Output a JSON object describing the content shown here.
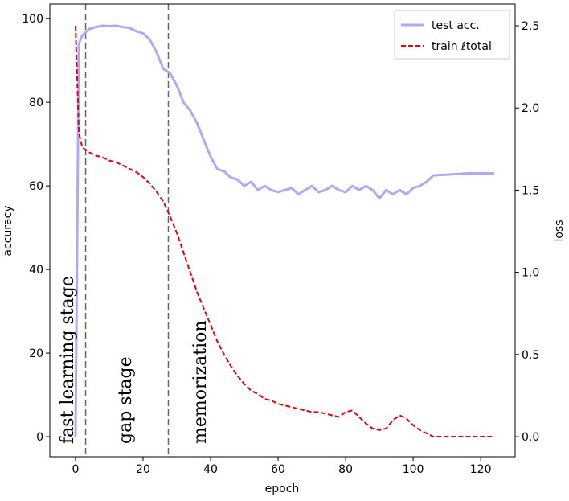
{
  "chart_data": {
    "type": "line",
    "xlabel": "epoch",
    "ylabel": "accuracy",
    "y2label": "loss",
    "x": [
      0,
      1,
      2,
      4,
      6,
      8,
      10,
      12,
      14,
      16,
      18,
      20,
      22,
      24,
      26,
      28,
      30,
      32,
      34,
      36,
      38,
      40,
      42,
      44,
      46,
      48,
      50,
      52,
      54,
      56,
      58,
      60,
      62,
      64,
      66,
      68,
      70,
      72,
      74,
      76,
      78,
      80,
      82,
      84,
      86,
      88,
      90,
      92,
      94,
      96,
      98,
      100,
      102,
      104,
      106,
      108,
      110,
      112,
      114,
      116,
      118,
      120,
      122,
      124
    ],
    "series": [
      {
        "name": "test acc.",
        "color": "#aaaaf5",
        "axis": "y",
        "dash": false,
        "values": [
          0,
          94,
          96,
          97.5,
          98,
          98.3,
          98.2,
          98.3,
          98,
          97.8,
          97,
          96.5,
          95,
          92,
          88,
          87,
          84,
          80,
          78,
          75,
          71,
          67,
          64,
          63.5,
          62,
          61.5,
          60,
          61,
          59,
          60,
          59,
          58.5,
          59,
          59.5,
          58,
          59,
          60,
          58.5,
          59,
          60,
          59,
          58.5,
          60,
          59,
          60,
          59,
          57,
          59,
          58,
          59,
          58,
          59.5,
          60,
          61,
          62.5,
          62.6,
          62.7,
          62.8,
          62.9,
          63,
          63,
          63,
          63,
          63
        ]
      },
      {
        "name": "train ℓtotal",
        "color": "#e8000b",
        "axis": "y2",
        "dash": true,
        "values": [
          2.5,
          1.85,
          1.76,
          1.73,
          1.71,
          1.7,
          1.68,
          1.67,
          1.65,
          1.63,
          1.61,
          1.58,
          1.54,
          1.49,
          1.43,
          1.34,
          1.24,
          1.12,
          1.0,
          0.88,
          0.78,
          0.68,
          0.58,
          0.5,
          0.43,
          0.37,
          0.32,
          0.28,
          0.26,
          0.23,
          0.22,
          0.2,
          0.19,
          0.18,
          0.17,
          0.16,
          0.15,
          0.15,
          0.14,
          0.13,
          0.12,
          0.15,
          0.16,
          0.12,
          0.08,
          0.05,
          0.04,
          0.05,
          0.1,
          0.13,
          0.11,
          0.07,
          0.04,
          0.02,
          0,
          0,
          0,
          0,
          0,
          0,
          0,
          0,
          0,
          0
        ]
      }
    ],
    "xlim": [
      -7.6,
      130.2
    ],
    "ylim": [
      -4.8,
      103.5
    ],
    "y2lim": [
      -0.122,
      2.632
    ],
    "xticks": [
      0,
      20,
      40,
      60,
      80,
      100,
      120
    ],
    "yticks": [
      0,
      20,
      40,
      60,
      80,
      100
    ],
    "y2ticks": [
      {
        "value": 0,
        "label": "0.0"
      },
      0.5,
      {
        "value": 1,
        "label": "1.0"
      },
      1.5,
      {
        "value": 2,
        "label": "2.0"
      },
      2.5
    ],
    "vlines": [
      3,
      27.5
    ],
    "annotations": [
      "fast learning stage",
      "gap stage",
      "memorization"
    ],
    "legend": "upper right"
  }
}
